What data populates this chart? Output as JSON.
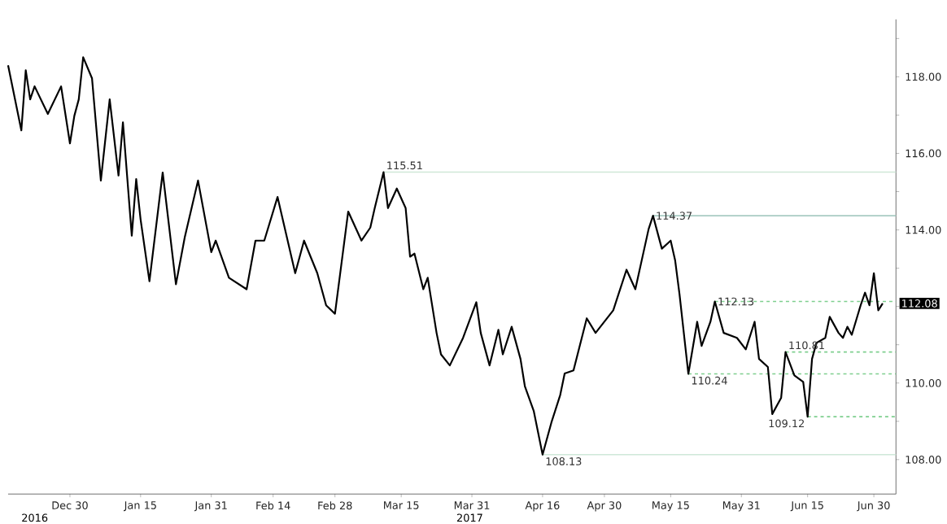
{
  "chart_data": {
    "type": "line",
    "color": "#000000",
    "x": [
      "2016-12-16",
      "2016-12-19",
      "2016-12-20",
      "2016-12-21",
      "2016-12-22",
      "2016-12-25",
      "2016-12-28",
      "2016-12-30",
      "2016-12-31",
      "2017-01-01",
      "2017-01-02",
      "2017-01-04",
      "2017-01-06",
      "2017-01-08",
      "2017-01-10",
      "2017-01-11",
      "2017-01-13",
      "2017-01-14",
      "2017-01-15",
      "2017-01-17",
      "2017-01-20",
      "2017-01-23",
      "2017-01-25",
      "2017-01-28",
      "2017-01-31",
      "2017-02-01",
      "2017-02-04",
      "2017-02-08",
      "2017-02-10",
      "2017-02-12",
      "2017-02-15",
      "2017-02-19",
      "2017-02-21",
      "2017-02-24",
      "2017-02-26",
      "2017-02-28",
      "2017-03-02",
      "2017-03-03",
      "2017-03-06",
      "2017-03-08",
      "2017-03-09",
      "2017-03-11",
      "2017-03-12",
      "2017-03-14",
      "2017-03-16",
      "2017-03-17",
      "2017-03-18",
      "2017-03-20",
      "2017-03-21",
      "2017-03-23",
      "2017-03-24",
      "2017-03-26",
      "2017-03-29",
      "2017-04-01",
      "2017-04-02",
      "2017-04-04",
      "2017-04-06",
      "2017-04-07",
      "2017-04-09",
      "2017-04-11",
      "2017-04-12",
      "2017-04-14",
      "2017-04-16",
      "2017-04-18",
      "2017-04-20",
      "2017-04-21",
      "2017-04-23",
      "2017-04-26",
      "2017-04-28",
      "2017-05-02",
      "2017-05-05",
      "2017-05-07",
      "2017-05-10",
      "2017-05-11",
      "2017-05-13",
      "2017-05-15",
      "2017-05-16",
      "2017-05-17",
      "2017-05-19",
      "2017-05-21",
      "2017-05-22",
      "2017-05-24",
      "2017-05-25",
      "2017-05-27",
      "2017-05-30",
      "2017-06-01",
      "2017-06-03",
      "2017-06-04",
      "2017-06-06",
      "2017-06-07",
      "2017-06-09",
      "2017-06-10",
      "2017-06-12",
      "2017-06-14",
      "2017-06-15",
      "2017-06-16",
      "2017-06-17",
      "2017-06-19",
      "2017-06-20",
      "2017-06-22",
      "2017-06-23",
      "2017-06-24",
      "2017-06-25",
      "2017-06-27",
      "2017-06-28",
      "2017-06-29",
      "2017-06-30",
      "2017-07-01",
      "2017-07-02"
    ],
    "values": [
      118.3,
      116.6,
      118.17,
      117.41,
      117.75,
      117.03,
      117.75,
      116.26,
      116.98,
      117.41,
      118.51,
      117.96,
      115.29,
      117.41,
      115.42,
      116.81,
      113.85,
      115.33,
      114.27,
      112.66,
      115.5,
      112.58,
      113.81,
      115.29,
      113.42,
      113.72,
      112.75,
      112.45,
      113.72,
      113.72,
      114.86,
      112.87,
      113.72,
      112.87,
      112.03,
      111.81,
      113.59,
      114.48,
      113.72,
      114.06,
      114.57,
      115.51,
      114.57,
      115.08,
      114.57,
      113.3,
      113.38,
      112.45,
      112.75,
      111.31,
      110.75,
      110.46,
      111.18,
      112.11,
      111.31,
      110.46,
      111.39,
      110.75,
      111.47,
      110.63,
      109.91,
      109.27,
      108.13,
      108.97,
      109.69,
      110.25,
      110.33,
      111.69,
      111.31,
      111.9,
      112.96,
      112.45,
      114.02,
      114.37,
      113.51,
      113.72,
      113.21,
      112.32,
      110.24,
      111.6,
      110.97,
      111.6,
      112.13,
      111.31,
      111.18,
      110.88,
      111.6,
      110.63,
      110.42,
      109.19,
      109.61,
      110.81,
      110.2,
      110.03,
      109.12,
      110.63,
      111.05,
      111.18,
      111.73,
      111.31,
      111.18,
      111.47,
      111.26,
      112.03,
      112.36,
      112.03,
      112.87,
      111.9,
      112.08
    ],
    "xlim": [
      "2016-12-16",
      "2017-07-05"
    ],
    "xticks": [
      {
        "value": "2016-12-30",
        "label": "Dec 30"
      },
      {
        "value": "2017-01-15",
        "label": "Jan 15"
      },
      {
        "value": "2017-01-31",
        "label": "Jan 31"
      },
      {
        "value": "2017-02-14",
        "label": "Feb 14"
      },
      {
        "value": "2017-02-28",
        "label": "Feb 28"
      },
      {
        "value": "2017-03-15",
        "label": "Mar 15"
      },
      {
        "value": "2017-03-31",
        "label": "Mar 31"
      },
      {
        "value": "2017-04-16",
        "label": "Apr 16"
      },
      {
        "value": "2017-04-30",
        "label": "Apr 30"
      },
      {
        "value": "2017-05-15",
        "label": "May 15"
      },
      {
        "value": "2017-05-31",
        "label": "May 31"
      },
      {
        "value": "2017-06-15",
        "label": "Jun 15"
      },
      {
        "value": "2017-06-30",
        "label": "Jun 30"
      }
    ],
    "ylim": [
      107.1,
      119.5
    ],
    "yticks": [
      {
        "value": 108,
        "label": "108.00"
      },
      {
        "value": 109,
        "label": null
      },
      {
        "value": 110,
        "label": "110.00"
      },
      {
        "value": 111,
        "label": null
      },
      {
        "value": 112,
        "label": null
      },
      {
        "value": 113,
        "label": null
      },
      {
        "value": 114,
        "label": "114.00"
      },
      {
        "value": 115,
        "label": null
      },
      {
        "value": 116,
        "label": "116.00"
      },
      {
        "value": 117,
        "label": null
      },
      {
        "value": 118,
        "label": "118.00"
      },
      {
        "value": 119,
        "label": null
      }
    ],
    "ref_lines": [
      {
        "axis": "y",
        "value": 115.51,
        "color": "#cfe8d8",
        "line_style": "solid"
      },
      {
        "axis": "y",
        "value": 114.37,
        "color": "#a9cbc3",
        "line_style": "solid"
      },
      {
        "axis": "y",
        "value": 112.13,
        "color": "#7fcf8f",
        "line_style": "dashed"
      },
      {
        "axis": "y",
        "value": 110.81,
        "color": "#7fcf8f",
        "line_style": "dashed"
      },
      {
        "axis": "y",
        "value": 110.24,
        "color": "#7fcf8f",
        "line_style": "dashed"
      },
      {
        "axis": "y",
        "value": 109.12,
        "color": "#7fcf8f",
        "line_style": "dashed"
      },
      {
        "axis": "y",
        "value": 108.13,
        "color": "#cfe8d8",
        "line_style": "solid"
      }
    ],
    "annotations": [
      {
        "text": "115.51",
        "x": "2017-03-11",
        "y": 115.51
      },
      {
        "text": "114.37",
        "x": "2017-05-11",
        "y": 114.37
      },
      {
        "text": "112.13",
        "x": "2017-05-25",
        "y": 112.13
      },
      {
        "text": "110.81",
        "x": "2017-06-10",
        "y": 110.81
      },
      {
        "text": "110.24",
        "x": "2017-05-19",
        "y": 110.24
      },
      {
        "text": "109.12",
        "x": "2017-06-15",
        "y": 109.12
      },
      {
        "text": "108.13",
        "x": "2017-04-16",
        "y": 108.13
      },
      "112.08",
      "2016",
      "2017"
    ]
  }
}
